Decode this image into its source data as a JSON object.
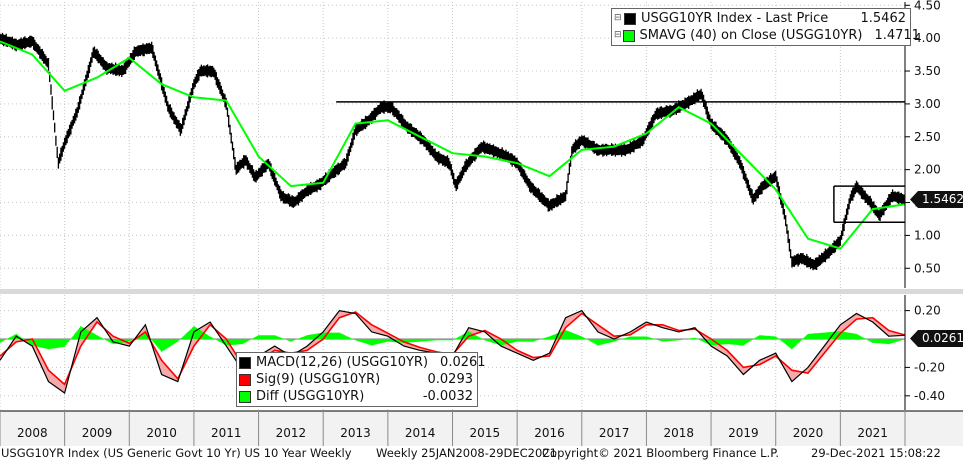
{
  "chart_data": [
    {
      "type": "line",
      "panel": "price",
      "xlim": [
        2008.0,
        2022.0
      ],
      "ylim": [
        0.2,
        4.55
      ],
      "yticks": [
        "4.50",
        "4.00",
        "3.50",
        "3.00",
        "2.50",
        "2.00",
        "1.50",
        "1.00",
        "0.50"
      ],
      "ytick_values": [
        4.5,
        4.0,
        3.5,
        3.0,
        2.5,
        2.0,
        1.5,
        1.0,
        0.5
      ],
      "x": [
        2008.0,
        2008.25,
        2008.5,
        2008.75,
        2008.9,
        2009.0,
        2009.2,
        2009.45,
        2009.65,
        2009.9,
        2010.1,
        2010.35,
        2010.6,
        2010.8,
        2011.0,
        2011.1,
        2011.3,
        2011.5,
        2011.65,
        2011.8,
        2011.95,
        2012.15,
        2012.35,
        2012.55,
        2012.75,
        2012.95,
        2013.15,
        2013.35,
        2013.5,
        2013.7,
        2013.9,
        2014.05,
        2014.3,
        2014.55,
        2014.75,
        2014.95,
        2015.05,
        2015.2,
        2015.45,
        2015.6,
        2015.85,
        2016.0,
        2016.2,
        2016.5,
        2016.75,
        2016.85,
        2017.0,
        2017.25,
        2017.5,
        2017.7,
        2017.95,
        2018.15,
        2018.4,
        2018.6,
        2018.85,
        2019.0,
        2019.25,
        2019.45,
        2019.65,
        2019.8,
        2020.0,
        2020.15,
        2020.25,
        2020.4,
        2020.6,
        2020.8,
        2021.0,
        2021.15,
        2021.25,
        2021.45,
        2021.6,
        2021.8,
        2021.99
      ],
      "series": [
        {
          "name": "USGG10YR Index - Last Price",
          "values": [
            4.0,
            3.9,
            3.95,
            3.6,
            2.1,
            2.4,
            2.9,
            3.8,
            3.55,
            3.5,
            3.8,
            3.85,
            2.95,
            2.6,
            3.3,
            3.5,
            3.5,
            3.0,
            2.0,
            2.15,
            1.88,
            2.1,
            1.6,
            1.5,
            1.68,
            1.78,
            1.95,
            2.1,
            2.6,
            2.75,
            2.95,
            2.95,
            2.65,
            2.45,
            2.2,
            2.1,
            1.75,
            2.05,
            2.35,
            2.3,
            2.2,
            2.1,
            1.75,
            1.45,
            1.6,
            2.3,
            2.45,
            2.3,
            2.3,
            2.3,
            2.45,
            2.85,
            2.9,
            3.0,
            3.15,
            2.7,
            2.45,
            2.1,
            1.55,
            1.75,
            1.9,
            1.25,
            0.6,
            0.65,
            0.55,
            0.72,
            0.92,
            1.55,
            1.74,
            1.52,
            1.3,
            1.6,
            1.5462
          ]
        },
        {
          "name": "SMAVG (40)  on Close (USGG10YR)",
          "x": [
            2008.0,
            2008.5,
            2009.0,
            2009.5,
            2010.0,
            2010.5,
            2011.0,
            2011.5,
            2012.0,
            2012.5,
            2013.0,
            2013.5,
            2014.0,
            2014.5,
            2015.0,
            2015.5,
            2016.0,
            2016.5,
            2017.0,
            2017.5,
            2018.0,
            2018.5,
            2019.0,
            2019.5,
            2020.0,
            2020.5,
            2021.0,
            2021.5,
            2021.99
          ],
          "values": [
            3.95,
            3.75,
            3.2,
            3.4,
            3.7,
            3.3,
            3.1,
            3.05,
            2.2,
            1.75,
            1.8,
            2.7,
            2.75,
            2.5,
            2.25,
            2.2,
            2.1,
            1.9,
            2.3,
            2.35,
            2.55,
            2.95,
            2.7,
            2.2,
            1.7,
            0.95,
            0.8,
            1.4,
            1.4711
          ]
        }
      ],
      "hlines": [
        {
          "y": 3.03,
          "x_start": 2013.2,
          "x_end": 2022.0
        },
        {
          "y": 1.75,
          "x_start": 2020.9,
          "x_end": 2022.0
        },
        {
          "y": 1.2,
          "x_start": 2020.9,
          "x_end": 2022.0
        }
      ],
      "legend": [
        {
          "label": "USGG10YR Index - Last Price",
          "value": "1.5462",
          "color": "#000000"
        },
        {
          "label": "SMAVG (40)  on Close (USGG10YR)",
          "value": "1.4711",
          "color": "#00ff00"
        }
      ],
      "last_value_tag": "1.5462"
    },
    {
      "type": "line",
      "panel": "macd",
      "ylim": [
        -0.5,
        0.31
      ],
      "yticks": [
        "0.20",
        "-0.20",
        "-0.40"
      ],
      "ytick_values": [
        0.2,
        -0.2,
        -0.4
      ],
      "x": [
        2008.0,
        2008.25,
        2008.5,
        2008.75,
        2009.0,
        2009.25,
        2009.5,
        2009.75,
        2010.0,
        2010.25,
        2010.5,
        2010.75,
        2011.0,
        2011.25,
        2011.5,
        2011.75,
        2012.0,
        2012.25,
        2012.5,
        2012.75,
        2013.0,
        2013.25,
        2013.5,
        2013.75,
        2014.0,
        2014.25,
        2014.5,
        2014.75,
        2015.0,
        2015.25,
        2015.5,
        2015.75,
        2016.0,
        2016.25,
        2016.5,
        2016.75,
        2017.0,
        2017.25,
        2017.5,
        2017.75,
        2018.0,
        2018.25,
        2018.5,
        2018.75,
        2019.0,
        2019.25,
        2019.5,
        2019.75,
        2020.0,
        2020.25,
        2020.5,
        2020.75,
        2021.0,
        2021.25,
        2021.5,
        2021.75,
        2021.99
      ],
      "series": [
        {
          "name": "MACD(12,26) (USGG10YR)",
          "values": [
            -0.15,
            0.02,
            -0.05,
            -0.3,
            -0.38,
            0.05,
            0.15,
            -0.02,
            -0.05,
            0.1,
            -0.25,
            -0.3,
            0.05,
            0.12,
            -0.05,
            -0.22,
            -0.12,
            -0.05,
            -0.12,
            -0.05,
            0.05,
            0.2,
            0.18,
            0.05,
            0.02,
            -0.05,
            -0.08,
            -0.1,
            -0.12,
            0.08,
            0.05,
            -0.05,
            -0.1,
            -0.15,
            -0.1,
            0.15,
            0.2,
            0.05,
            0.0,
            0.05,
            0.12,
            0.08,
            0.05,
            0.08,
            -0.05,
            -0.12,
            -0.25,
            -0.15,
            -0.1,
            -0.3,
            -0.2,
            -0.05,
            0.1,
            0.18,
            0.12,
            0.02,
            0.0261
          ]
        },
        {
          "name": "Sig(9) (USGG10YR)",
          "values": [
            -0.12,
            -0.02,
            0.0,
            -0.22,
            -0.32,
            -0.05,
            0.12,
            0.02,
            -0.03,
            0.05,
            -0.15,
            -0.28,
            -0.05,
            0.1,
            0.0,
            -0.18,
            -0.15,
            -0.08,
            -0.1,
            -0.08,
            0.0,
            0.15,
            0.19,
            0.1,
            0.04,
            -0.02,
            -0.06,
            -0.09,
            -0.11,
            0.02,
            0.06,
            0.0,
            -0.08,
            -0.13,
            -0.12,
            0.08,
            0.18,
            0.1,
            0.02,
            0.03,
            0.1,
            0.1,
            0.06,
            0.07,
            0.0,
            -0.08,
            -0.2,
            -0.18,
            -0.12,
            -0.22,
            -0.24,
            -0.1,
            0.04,
            0.14,
            0.15,
            0.06,
            0.0293
          ]
        }
      ],
      "histogram_name": "Diff (USGG10YR)",
      "zero_line": true,
      "legend": [
        {
          "label": "MACD(12,26) (USGG10YR)",
          "value": "0.0261",
          "color": "#000000"
        },
        {
          "label": "Sig(9) (USGG10YR)",
          "value": "0.0293",
          "color": "#ff0000"
        },
        {
          "label": "Diff (USGG10YR)",
          "value": "-0.0032",
          "color": "#00ff00"
        }
      ],
      "last_value_tag": "0.0261"
    }
  ],
  "xaxis": {
    "labels": [
      "2008",
      "2009",
      "2010",
      "2011",
      "2012",
      "2013",
      "2014",
      "2015",
      "2016",
      "2017",
      "2018",
      "2019",
      "2020",
      "2021"
    ]
  },
  "colors": {
    "price": "#000000",
    "sma": "#00ff00",
    "macd": "#000000",
    "signal": "#ff0000",
    "diff": "#00ff00",
    "band_fill": "#f4aaaa",
    "grid": "#c8c8c8",
    "panel_bg": "#ffffff",
    "axis_bg": "#f2f2f2"
  },
  "footer": {
    "left": "USGG10YR Index (US Generic Govt 10 Yr) US 10 Year Weekly",
    "middle": "Weekly 25JAN2008-29DEC2021",
    "copyright": "Copyright© 2021 Bloomberg Finance L.P.",
    "timestamp": "29-Dec-2021 15:08:22"
  }
}
